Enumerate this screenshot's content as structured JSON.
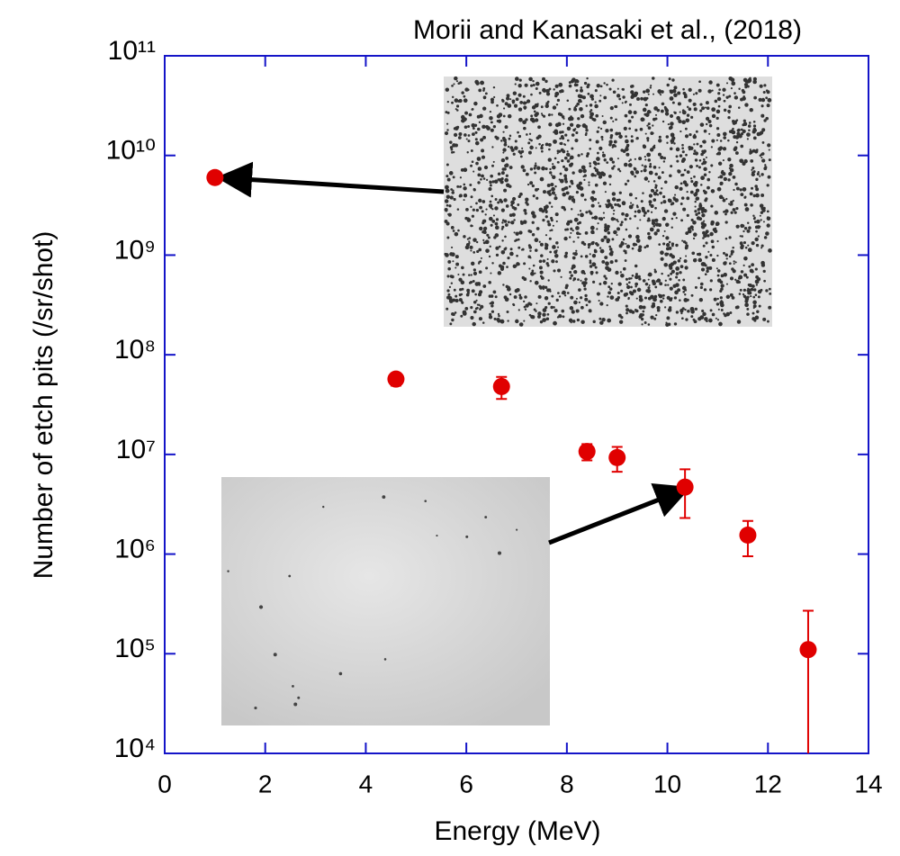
{
  "chart_data": {
    "type": "scatter",
    "annotation": "Morii and Kanasaki et al., (2018)",
    "x_label": "Energy (MeV)",
    "y_label": "Number of etch pits  (/sr/shot)",
    "x": [
      1.0,
      4.6,
      6.7,
      8.4,
      9.0,
      10.35,
      11.6,
      12.8
    ],
    "values": [
      6000000000,
      57000000,
      48000000,
      10700000,
      9300000,
      4700000,
      1550000,
      110000
    ],
    "errors": [
      500000000,
      8000000,
      12000000,
      2000000,
      2600000,
      2400000,
      600000,
      160000
    ],
    "color": "#e00000",
    "axis_color": "#1414c8",
    "y_log": true,
    "xlim": [
      0,
      14
    ],
    "xticks": [
      0,
      2,
      4,
      6,
      8,
      10,
      12,
      14
    ],
    "ylim": [
      10000,
      100000000000
    ],
    "yticks": [
      {
        "value": 10000,
        "label": "10⁴"
      },
      {
        "value": 100000,
        "label": "10⁵"
      },
      {
        "value": 1000000,
        "label": "10⁶"
      },
      {
        "value": 10000000,
        "label": "10⁷"
      },
      {
        "value": 100000000,
        "label": "10⁸"
      },
      {
        "value": 1000000000,
        "label": "10⁹"
      },
      {
        "value": 10000000000,
        "label": "10¹⁰"
      },
      {
        "value": 100000000000,
        "label": "10¹¹"
      }
    ]
  }
}
